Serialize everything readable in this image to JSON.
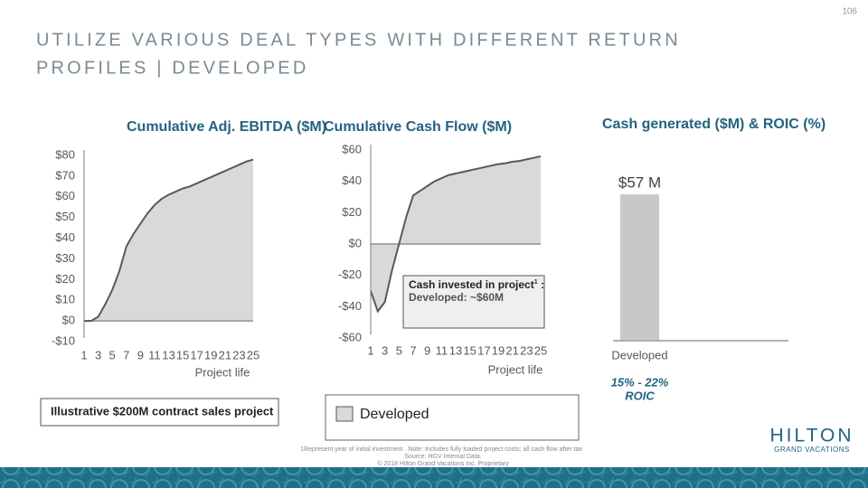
{
  "page_number": "106",
  "title": [
    "UTILIZE VARIOUS DEAL TYPES WITH DIFFERENT RETURN",
    "PROFILES | DEVELOPED"
  ],
  "chart_data": [
    {
      "type": "area",
      "title": "Cumulative Adj. EBITDA ($M)",
      "x_label": "Project life",
      "x": [
        1,
        2,
        3,
        4,
        5,
        6,
        7,
        8,
        9,
        10,
        11,
        12,
        13,
        14,
        15,
        16,
        17,
        18,
        19,
        20,
        21,
        22,
        23,
        24,
        25
      ],
      "series": [
        {
          "name": "Developed",
          "color": "#d9d9d9",
          "values": [
            0,
            0,
            2,
            8,
            15,
            24,
            36,
            42,
            47,
            52,
            56,
            59,
            61,
            62.5,
            64,
            65,
            66.5,
            68,
            69.5,
            71,
            72.5,
            74,
            75.5,
            77,
            78
          ]
        }
      ],
      "xlim": [
        1,
        25
      ],
      "xticks": [
        1,
        3,
        5,
        7,
        9,
        11,
        13,
        15,
        17,
        19,
        21,
        23,
        25
      ],
      "ylim": [
        -10,
        80
      ],
      "yticks": [
        {
          "value": -10,
          "label": "-$10"
        },
        {
          "value": 0,
          "label": "$0"
        },
        {
          "value": 10,
          "label": "$10"
        },
        {
          "value": 20,
          "label": "$20"
        },
        {
          "value": 30,
          "label": "$30"
        },
        {
          "value": 40,
          "label": "$40"
        },
        {
          "value": 50,
          "label": "$50"
        },
        {
          "value": 60,
          "label": "$60"
        },
        {
          "value": 70,
          "label": "$70"
        },
        {
          "value": 80,
          "label": "$80"
        }
      ],
      "line_color": "#595959"
    },
    {
      "type": "area",
      "title": "Cumulative Cash Flow ($M)",
      "x_label": "Project life",
      "x": [
        1,
        2,
        3,
        4,
        5,
        6,
        7,
        8,
        9,
        10,
        11,
        12,
        13,
        14,
        15,
        16,
        17,
        18,
        19,
        20,
        21,
        22,
        23,
        24,
        25
      ],
      "series": [
        {
          "name": "Developed",
          "color": "#d9d9d9",
          "values": [
            -30,
            -43,
            -37,
            -17,
            0,
            17,
            31,
            34,
            37,
            40,
            42,
            44,
            45,
            46,
            47,
            48,
            49,
            50,
            51,
            51.5,
            52.5,
            53,
            54,
            55,
            56
          ]
        }
      ],
      "xlim": [
        1,
        25
      ],
      "xticks": [
        1,
        3,
        5,
        7,
        9,
        11,
        13,
        15,
        17,
        19,
        21,
        23,
        25
      ],
      "ylim": [
        -60,
        60
      ],
      "yticks": [
        {
          "value": -60,
          "label": "-$60"
        },
        {
          "value": -40,
          "label": "-$40"
        },
        {
          "value": -20,
          "label": "-$20"
        },
        {
          "value": 0,
          "label": "$0"
        },
        {
          "value": 20,
          "label": "$20"
        },
        {
          "value": 40,
          "label": "$40"
        },
        {
          "value": 60,
          "label": "$60"
        }
      ],
      "line_color": "#595959",
      "annotation": {
        "text": "Cash invested in project",
        "superscript": "1",
        "suffix": " :",
        "detail": "Developed: ~$60M"
      }
    },
    {
      "type": "bar",
      "title": "Cash generated ($M) & ROIC (%)",
      "categories": [
        "Developed"
      ],
      "values": [
        57
      ],
      "value_labels": [
        "$57 M"
      ],
      "color": "#c8c8c8",
      "annotations": [
        "15% - 22%",
        "ROIC"
      ]
    }
  ],
  "note": "Illustrative $200M contract sales project",
  "footnote": {
    "marker": "1.",
    "text": "Represent year of initial investment . Note: Includes fully loaded project costs; all cash flow after tax",
    "source": "Source: HGV Internal Data.",
    "copyright": "© 2018 Hilton Grand Vacations Inc. Proprietary"
  },
  "logo": {
    "name": "HILTON",
    "sub": "GRAND VACATIONS"
  }
}
